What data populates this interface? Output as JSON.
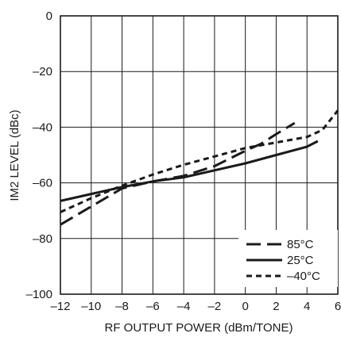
{
  "chart_data": {
    "type": "line",
    "title": "",
    "xlabel": "RF OUTPUT POWER (dBm/TONE)",
    "ylabel": "IM2 LEVEL (dBc)",
    "xlim": [
      -12,
      6
    ],
    "ylim": [
      -100,
      0
    ],
    "xticks": [
      -12,
      -10,
      -8,
      -6,
      -4,
      -2,
      0,
      2,
      4,
      6
    ],
    "xtick_labels": [
      "–12",
      "–10",
      "–8",
      "–6",
      "–4",
      "–2",
      "0",
      "2",
      "4",
      "6"
    ],
    "yticks": [
      0,
      -20,
      -40,
      -60,
      -80,
      -100
    ],
    "ytick_labels": [
      "0",
      "–20",
      "–40",
      "–60",
      "–80",
      "–100"
    ],
    "grid": true,
    "legend_position": "bottom-right",
    "series": [
      {
        "name": "85°C",
        "style": "long-dash",
        "x": [
          -12,
          -10,
          -8,
          -6,
          -4,
          -2,
          0,
          1,
          2,
          3.2
        ],
        "y": [
          -75,
          -68.5,
          -62,
          -59.5,
          -57.5,
          -54,
          -48.5,
          -46,
          -42.5,
          -38.5
        ]
      },
      {
        "name": "25°C",
        "style": "solid",
        "x": [
          -12,
          -10,
          -8,
          -6,
          -4,
          -2,
          0,
          2,
          4,
          4.7
        ],
        "y": [
          -66.5,
          -64,
          -61.5,
          -59.5,
          -58,
          -55.5,
          -53,
          -50,
          -47,
          -45
        ]
      },
      {
        "name": "–40°C",
        "style": "short-dash",
        "x": [
          -12,
          -10,
          -8,
          -6,
          -4,
          -2,
          0,
          2,
          4,
          5,
          6
        ],
        "y": [
          -70.5,
          -65.5,
          -61,
          -57,
          -53.5,
          -50.5,
          -47.5,
          -45.5,
          -43.5,
          -41,
          -34
        ]
      }
    ]
  }
}
